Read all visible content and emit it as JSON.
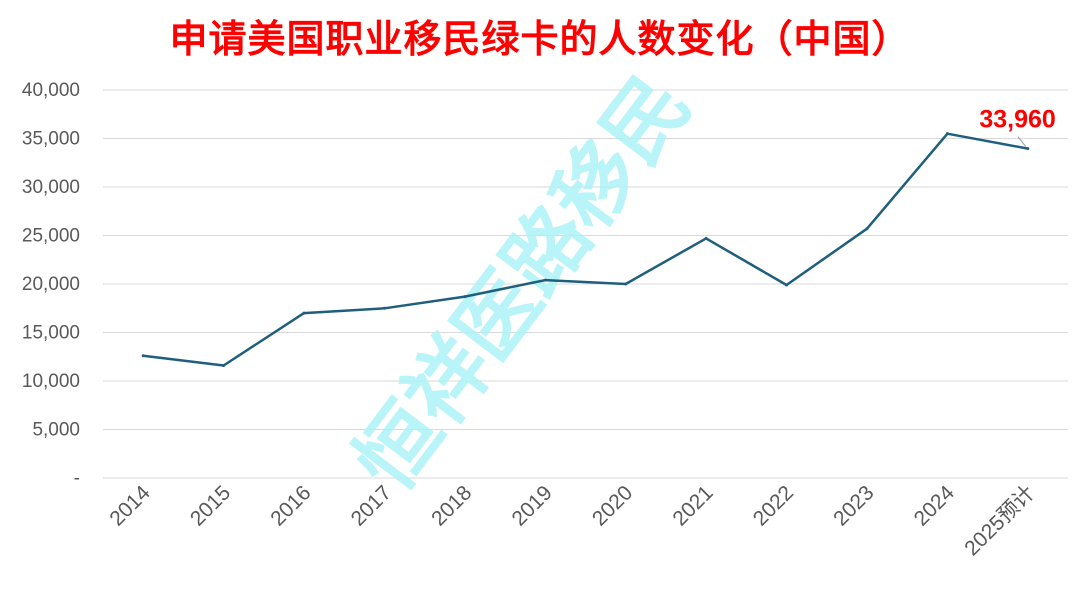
{
  "chart_data": {
    "type": "line",
    "title": "申请美国职业移民绿卡的人数变化（中国）",
    "categories": [
      "2014",
      "2015",
      "2016",
      "2017",
      "2018",
      "2019",
      "2020",
      "2021",
      "2022",
      "2023",
      "2024",
      "2025预计"
    ],
    "series": [
      {
        "values": [
          12600,
          11600,
          17000,
          17500,
          18700,
          20400,
          20000,
          24700,
          19900,
          25700,
          35500,
          33960
        ]
      }
    ],
    "ylim": [
      0,
      40000
    ],
    "yticks": [
      0,
      5000,
      10000,
      15000,
      20000,
      25000,
      30000,
      35000,
      40000
    ],
    "ytick_labels": [
      "-",
      "5,000",
      "10,000",
      "15,000",
      "20,000",
      "25,000",
      "30,000",
      "35,000",
      "40,000"
    ],
    "grid": true,
    "annotation": {
      "text": "33,960",
      "category": "2025预计",
      "value": 33960
    },
    "watermark": "恒祥医路移民",
    "colors": {
      "line": "#1f5f7d",
      "title": "#ff0000",
      "annotation": "#ff0000",
      "watermark": "#a8f3f6",
      "grid": "#d9d9d9",
      "axis_text": "#595959"
    }
  }
}
